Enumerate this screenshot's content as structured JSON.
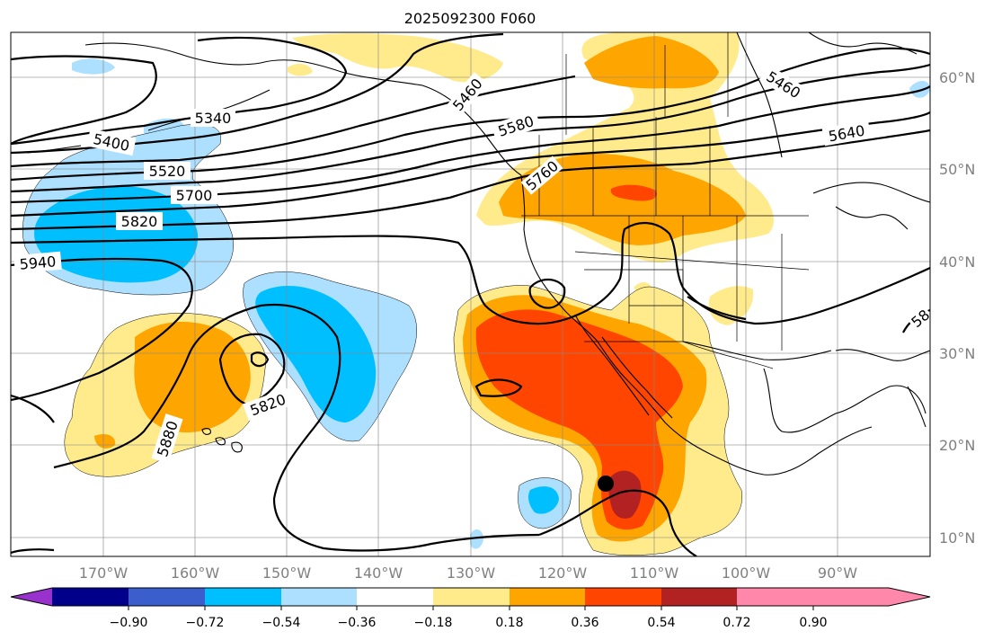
{
  "title": "2025092300 F060",
  "lon_ticks": [
    "170°W",
    "160°W",
    "150°W",
    "140°W",
    "130°W",
    "120°W",
    "110°W",
    "100°W",
    "90°W"
  ],
  "lat_ticks": [
    "60°N",
    "50°N",
    "40°N",
    "30°N",
    "20°N",
    "10°N"
  ],
  "contour_labels": [
    "5340",
    "5400",
    "5520",
    "5700",
    "5820",
    "5940",
    "5460",
    "5580",
    "5640",
    "5460",
    "5820",
    "5880",
    "5760",
    "58"
  ],
  "colorbar": {
    "tick_labels": [
      "−0.90",
      "−0.72",
      "−0.54",
      "−0.36",
      "−0.18",
      "0.18",
      "0.36",
      "0.54",
      "0.72",
      "0.90"
    ],
    "colors": [
      "#9932CC",
      "#00008B",
      "#3A5FCD",
      "#00BFFF",
      "#ADDFFF",
      "#FFFFFF",
      "#FFEB8C",
      "#FFA500",
      "#FF4500",
      "#B22222",
      "#FF88AA"
    ]
  },
  "marker": {
    "label": "storm-center",
    "lon": -115.5,
    "lat": 15.8
  }
}
